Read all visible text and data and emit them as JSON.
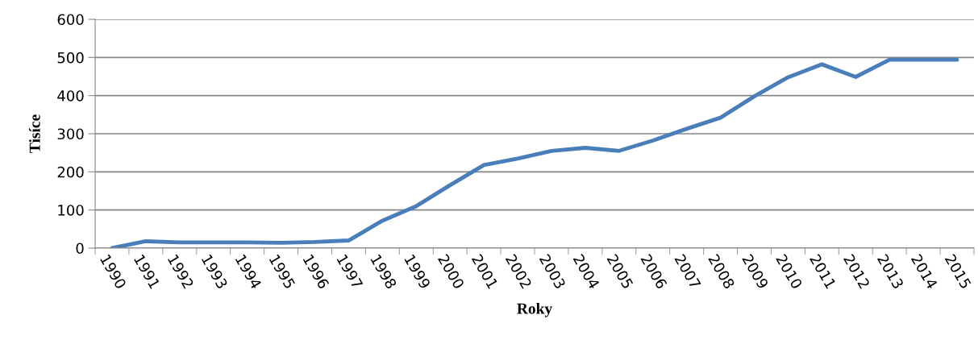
{
  "chart_data": {
    "type": "line",
    "xlabel": "Roky",
    "ylabel": "Tisíce",
    "categories": [
      "1990",
      "1991",
      "1992",
      "1993",
      "1994",
      "1995",
      "1996",
      "1997",
      "1998",
      "1999",
      "2000",
      "2001",
      "2002",
      "2003",
      "2004",
      "2005",
      "2006",
      "2007",
      "2008",
      "2009",
      "2010",
      "2011",
      "2012",
      "2013",
      "2014",
      "2015"
    ],
    "series": [
      {
        "color": "#4a7ebb",
        "values": [
          0,
          18,
          15,
          15,
          15,
          14,
          16,
          20,
          72,
          110,
          165,
          218,
          235,
          255,
          263,
          255,
          282,
          313,
          342,
          398,
          448,
          482,
          449,
          494,
          494,
          494
        ]
      }
    ],
    "ylim": [
      0,
      600
    ],
    "yticks": [
      0,
      100,
      200,
      300,
      400,
      500,
      600
    ],
    "grid": "y",
    "legend": false,
    "marker": "none",
    "line_style": "solid"
  }
}
